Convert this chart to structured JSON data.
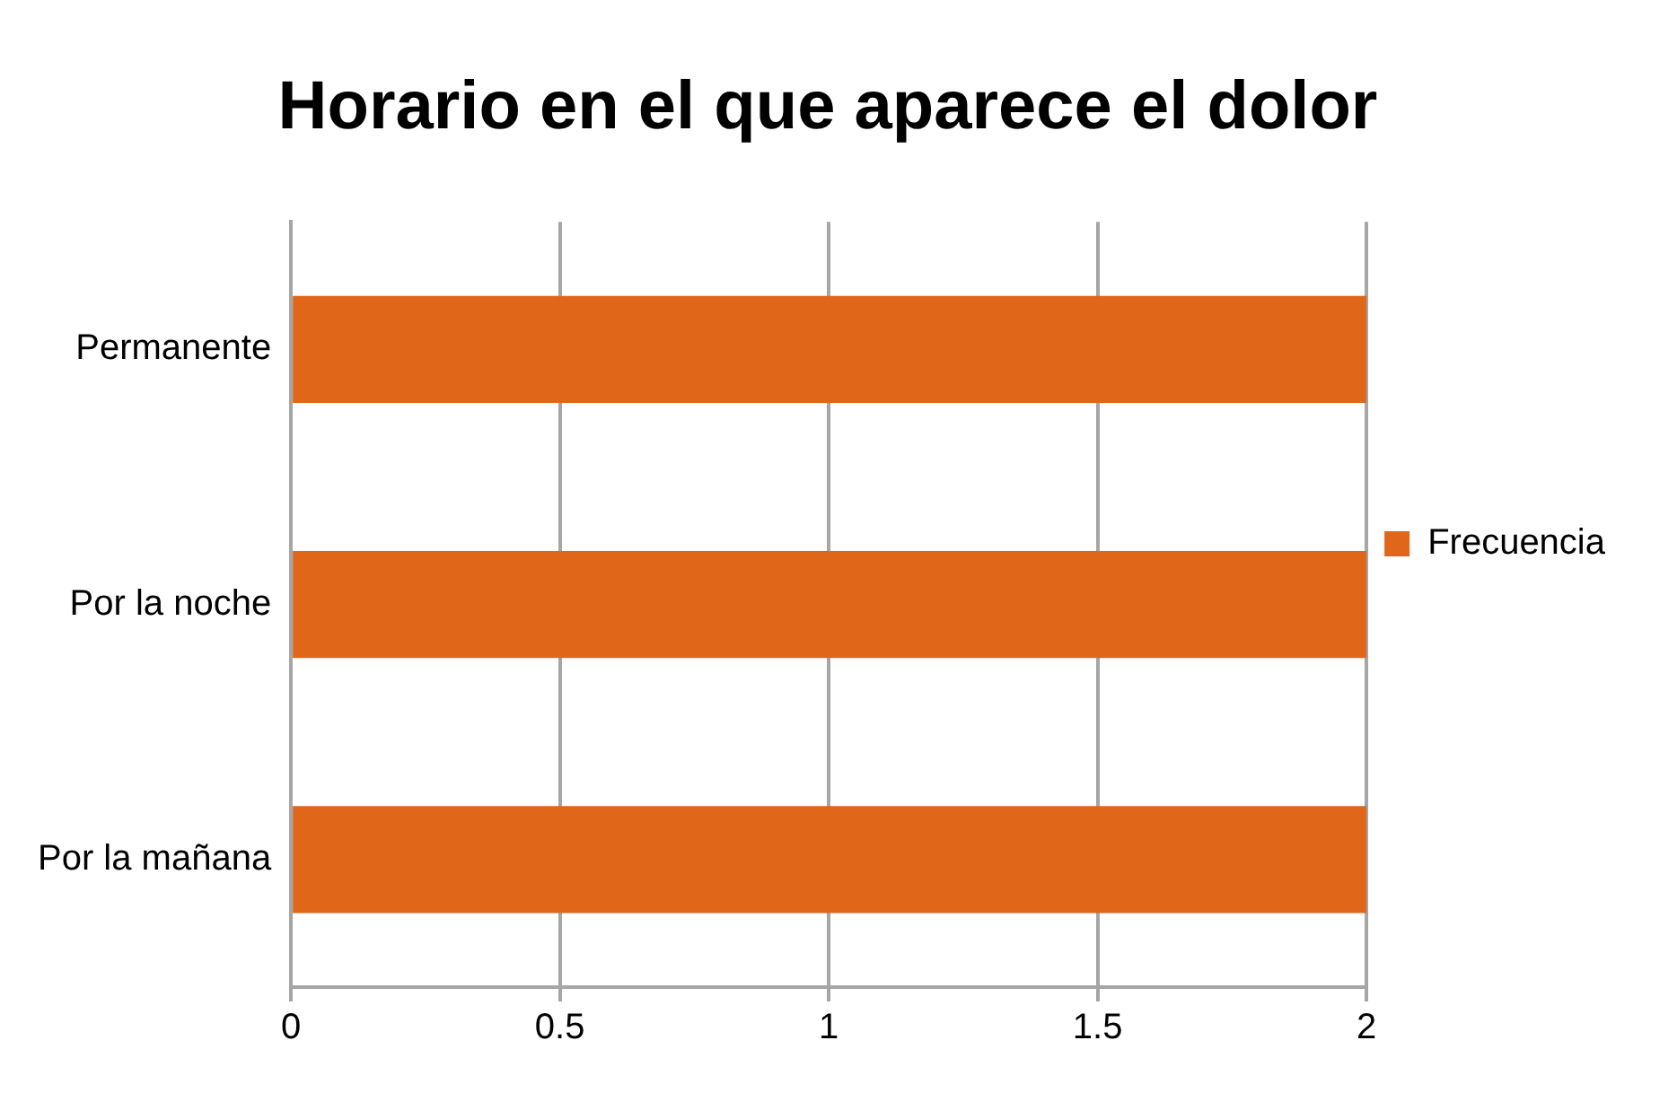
{
  "chart_data": {
    "type": "bar",
    "title": "Horario en el que aparece el dolor",
    "orientation": "horizontal",
    "categories": [
      "Permanente",
      "Por la noche",
      "Por la mañana"
    ],
    "series": [
      {
        "name": "Frecuencia",
        "color": "#e0661a",
        "values": [
          2,
          2,
          2
        ]
      }
    ],
    "xlim": [
      0,
      2
    ],
    "xticks": [
      0,
      0.5,
      1,
      1.5,
      2
    ],
    "grid": "x",
    "legend": "right"
  }
}
